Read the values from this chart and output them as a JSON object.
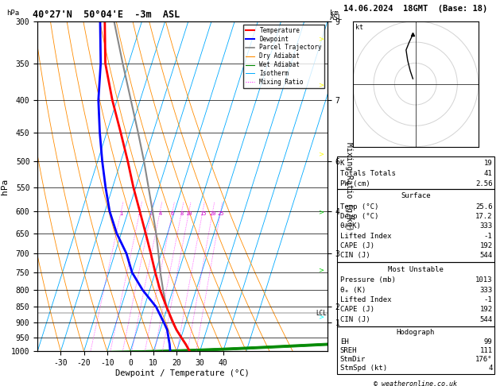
{
  "title_left": "40°27'N  50°04'E  -3m  ASL",
  "title_right": "14.06.2024  18GMT  (Base: 18)",
  "xlabel": "Dewpoint / Temperature (°C)",
  "ylabel_left": "hPa",
  "isotherm_temps": [
    -40,
    -30,
    -20,
    -10,
    0,
    10,
    20,
    30,
    40,
    50
  ],
  "dry_adiabat_temps": [
    -40,
    -30,
    -20,
    -10,
    0,
    10,
    20,
    30,
    40,
    50,
    60,
    70
  ],
  "wet_adiabat_temps": [
    -10,
    0,
    5,
    10,
    15,
    20,
    25,
    30
  ],
  "mixing_ratio_lines": [
    1,
    2,
    3,
    4,
    6,
    8,
    10,
    15,
    20,
    25
  ],
  "mixing_ratio_labels": [
    "1",
    "2",
    "3",
    "4",
    "6",
    "8",
    "10",
    "15",
    "20",
    "25"
  ],
  "temp_profile": {
    "pressure": [
      1000,
      975,
      950,
      925,
      900,
      850,
      800,
      750,
      700,
      650,
      600,
      550,
      500,
      450,
      400,
      350,
      300
    ],
    "temp": [
      25.6,
      23.0,
      20.0,
      17.0,
      14.5,
      9.5,
      4.5,
      0.0,
      -4.5,
      -9.5,
      -15.0,
      -21.0,
      -27.0,
      -34.0,
      -42.0,
      -50.0,
      -56.0
    ]
  },
  "dewpoint_profile": {
    "pressure": [
      1000,
      975,
      950,
      925,
      900,
      850,
      800,
      750,
      700,
      650,
      600,
      550,
      500,
      450,
      400,
      350,
      300
    ],
    "temp": [
      17.2,
      16.0,
      14.5,
      13.0,
      10.5,
      5.0,
      -3.0,
      -10.0,
      -15.0,
      -22.0,
      -28.0,
      -33.0,
      -38.0,
      -43.0,
      -48.0,
      -52.0,
      -58.0
    ]
  },
  "parcel_profile": {
    "pressure": [
      1000,
      975,
      950,
      925,
      900,
      850,
      800,
      750,
      700,
      650,
      600,
      550,
      500,
      450,
      400,
      350,
      300
    ],
    "temp": [
      25.6,
      22.8,
      19.9,
      17.0,
      14.2,
      9.5,
      5.8,
      2.2,
      -1.2,
      -5.0,
      -9.5,
      -14.5,
      -20.0,
      -26.5,
      -34.0,
      -42.5,
      -52.0
    ]
  },
  "lcl_pressure": 870,
  "color_temp": "#ff0000",
  "color_dewpoint": "#0000ff",
  "color_parcel": "#888888",
  "color_dry_adiabat": "#ff8c00",
  "color_wet_adiabat": "#008800",
  "color_isotherm": "#00aaff",
  "color_mixing_ratio": "#ff00ff",
  "km_ticks": {
    "300": 9,
    "400": 7,
    "500": 6,
    "600": 4,
    "700": 3,
    "850": 2,
    "900": 1
  },
  "indices": {
    "K": 19,
    "Totals Totals": 41,
    "PW (cm)": 2.56,
    "Surface Temp": 25.6,
    "Surface Dewp": 17.2,
    "Surface theta_e": 333,
    "Surface Lifted Index": -1,
    "Surface CAPE": 192,
    "Surface CIN": 544,
    "MU Pressure": 1013,
    "MU theta_e": 333,
    "MU Lifted Index": -1,
    "MU CAPE": 192,
    "MU CIN": 544,
    "EH": 99,
    "SREH": 111,
    "StmDir": 176,
    "StmSpd": 4
  },
  "copyright": "© weatheronline.co.uk",
  "hodo_u": [
    -0.5,
    -1.0,
    -1.5,
    -1.8,
    -1.2,
    -0.5
  ],
  "hodo_v": [
    1.0,
    2.5,
    4.5,
    6.5,
    8.0,
    9.5
  ]
}
